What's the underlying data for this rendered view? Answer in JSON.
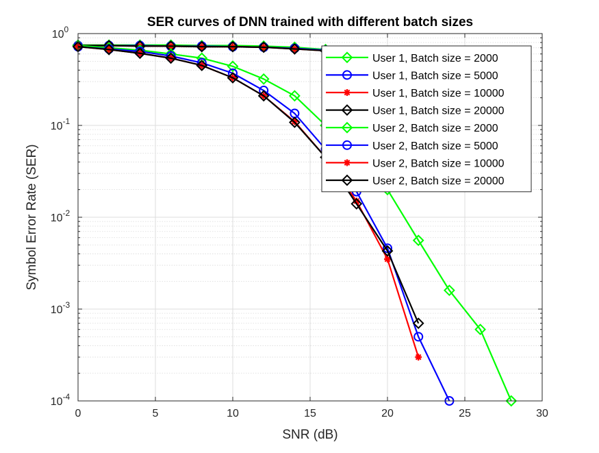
{
  "chart_data": {
    "type": "line",
    "title": "SER curves of DNN trained with different batch sizes",
    "xlabel": "SNR (dB)",
    "ylabel": "Symbol Error Rate (SER)",
    "xlim": [
      0,
      30
    ],
    "ylim": [
      0.0001,
      1
    ],
    "yscale": "log",
    "grid": true,
    "minor_grid": true,
    "legend_position": "top-right",
    "x_ticks": [
      {
        "value": 0,
        "label": "0"
      },
      {
        "value": 5,
        "label": "5"
      },
      {
        "value": 10,
        "label": "10"
      },
      {
        "value": 15,
        "label": "15"
      },
      {
        "value": 20,
        "label": "20"
      },
      {
        "value": 25,
        "label": "25"
      },
      {
        "value": 30,
        "label": "30"
      }
    ],
    "y_ticks": [
      {
        "value": 1,
        "base": "10",
        "exp": "0"
      },
      {
        "value": 0.1,
        "base": "10",
        "exp": "-1"
      },
      {
        "value": 0.01,
        "base": "10",
        "exp": "-2"
      },
      {
        "value": 0.001,
        "base": "10",
        "exp": "-3"
      },
      {
        "value": 0.0001,
        "base": "10",
        "exp": "-4"
      }
    ],
    "series": [
      {
        "name": "User 1, Batch size = 2000",
        "color": "#00ff00",
        "marker": "diamond",
        "x": [
          0,
          2,
          4,
          6,
          8,
          10,
          12,
          14,
          16
        ],
        "y": [
          0.75,
          0.75,
          0.75,
          0.75,
          0.74,
          0.74,
          0.73,
          0.71,
          0.67
        ]
      },
      {
        "name": "User 1, Batch size = 5000",
        "color": "#0000ff",
        "marker": "circle",
        "x": [
          0,
          2,
          4,
          6,
          8,
          10,
          12,
          14,
          16
        ],
        "y": [
          0.74,
          0.74,
          0.74,
          0.73,
          0.73,
          0.72,
          0.71,
          0.69,
          0.66
        ]
      },
      {
        "name": "User 1, Batch size = 10000",
        "color": "#ff0000",
        "marker": "asterisk",
        "x": [
          0,
          2,
          4,
          6,
          8,
          10,
          12,
          14,
          16
        ],
        "y": [
          0.74,
          0.74,
          0.73,
          0.73,
          0.72,
          0.72,
          0.71,
          0.68,
          0.65
        ]
      },
      {
        "name": "User 1, Batch size = 20000",
        "color": "#000000",
        "marker": "diamond",
        "x": [
          0,
          2,
          4,
          6,
          8,
          10,
          12,
          14,
          16
        ],
        "y": [
          0.74,
          0.74,
          0.73,
          0.73,
          0.72,
          0.72,
          0.71,
          0.68,
          0.65
        ]
      },
      {
        "name": "User 2, Batch size = 2000",
        "color": "#00ff00",
        "marker": "diamond",
        "x": [
          0,
          2,
          4,
          6,
          8,
          10,
          12,
          14,
          16,
          18,
          20,
          22,
          24,
          26,
          28
        ],
        "y": [
          0.74,
          0.7,
          0.66,
          0.6,
          0.54,
          0.44,
          0.32,
          0.21,
          0.1,
          0.05,
          0.02,
          0.0056,
          0.0016,
          0.0006,
          0.0001
        ]
      },
      {
        "name": "User 2, Batch size = 5000",
        "color": "#0000ff",
        "marker": "circle",
        "x": [
          0,
          2,
          4,
          6,
          8,
          10,
          12,
          14,
          16,
          18,
          20,
          22,
          24
        ],
        "y": [
          0.72,
          0.68,
          0.64,
          0.57,
          0.48,
          0.37,
          0.24,
          0.135,
          0.055,
          0.019,
          0.0046,
          0.0005,
          0.0001
        ]
      },
      {
        "name": "User 2, Batch size = 10000",
        "color": "#ff0000",
        "marker": "asterisk",
        "x": [
          0,
          2,
          4,
          6,
          8,
          10,
          12,
          14,
          16,
          18,
          20,
          22
        ],
        "y": [
          0.72,
          0.67,
          0.61,
          0.54,
          0.45,
          0.33,
          0.21,
          0.11,
          0.045,
          0.015,
          0.0035,
          0.0003
        ]
      },
      {
        "name": "User 2, Batch size = 20000",
        "color": "#000000",
        "marker": "diamond",
        "x": [
          0,
          2,
          4,
          6,
          8,
          10,
          12,
          14,
          16,
          18,
          20,
          22
        ],
        "y": [
          0.72,
          0.67,
          0.61,
          0.54,
          0.45,
          0.33,
          0.21,
          0.108,
          0.045,
          0.014,
          0.0043,
          0.0007
        ]
      }
    ]
  }
}
